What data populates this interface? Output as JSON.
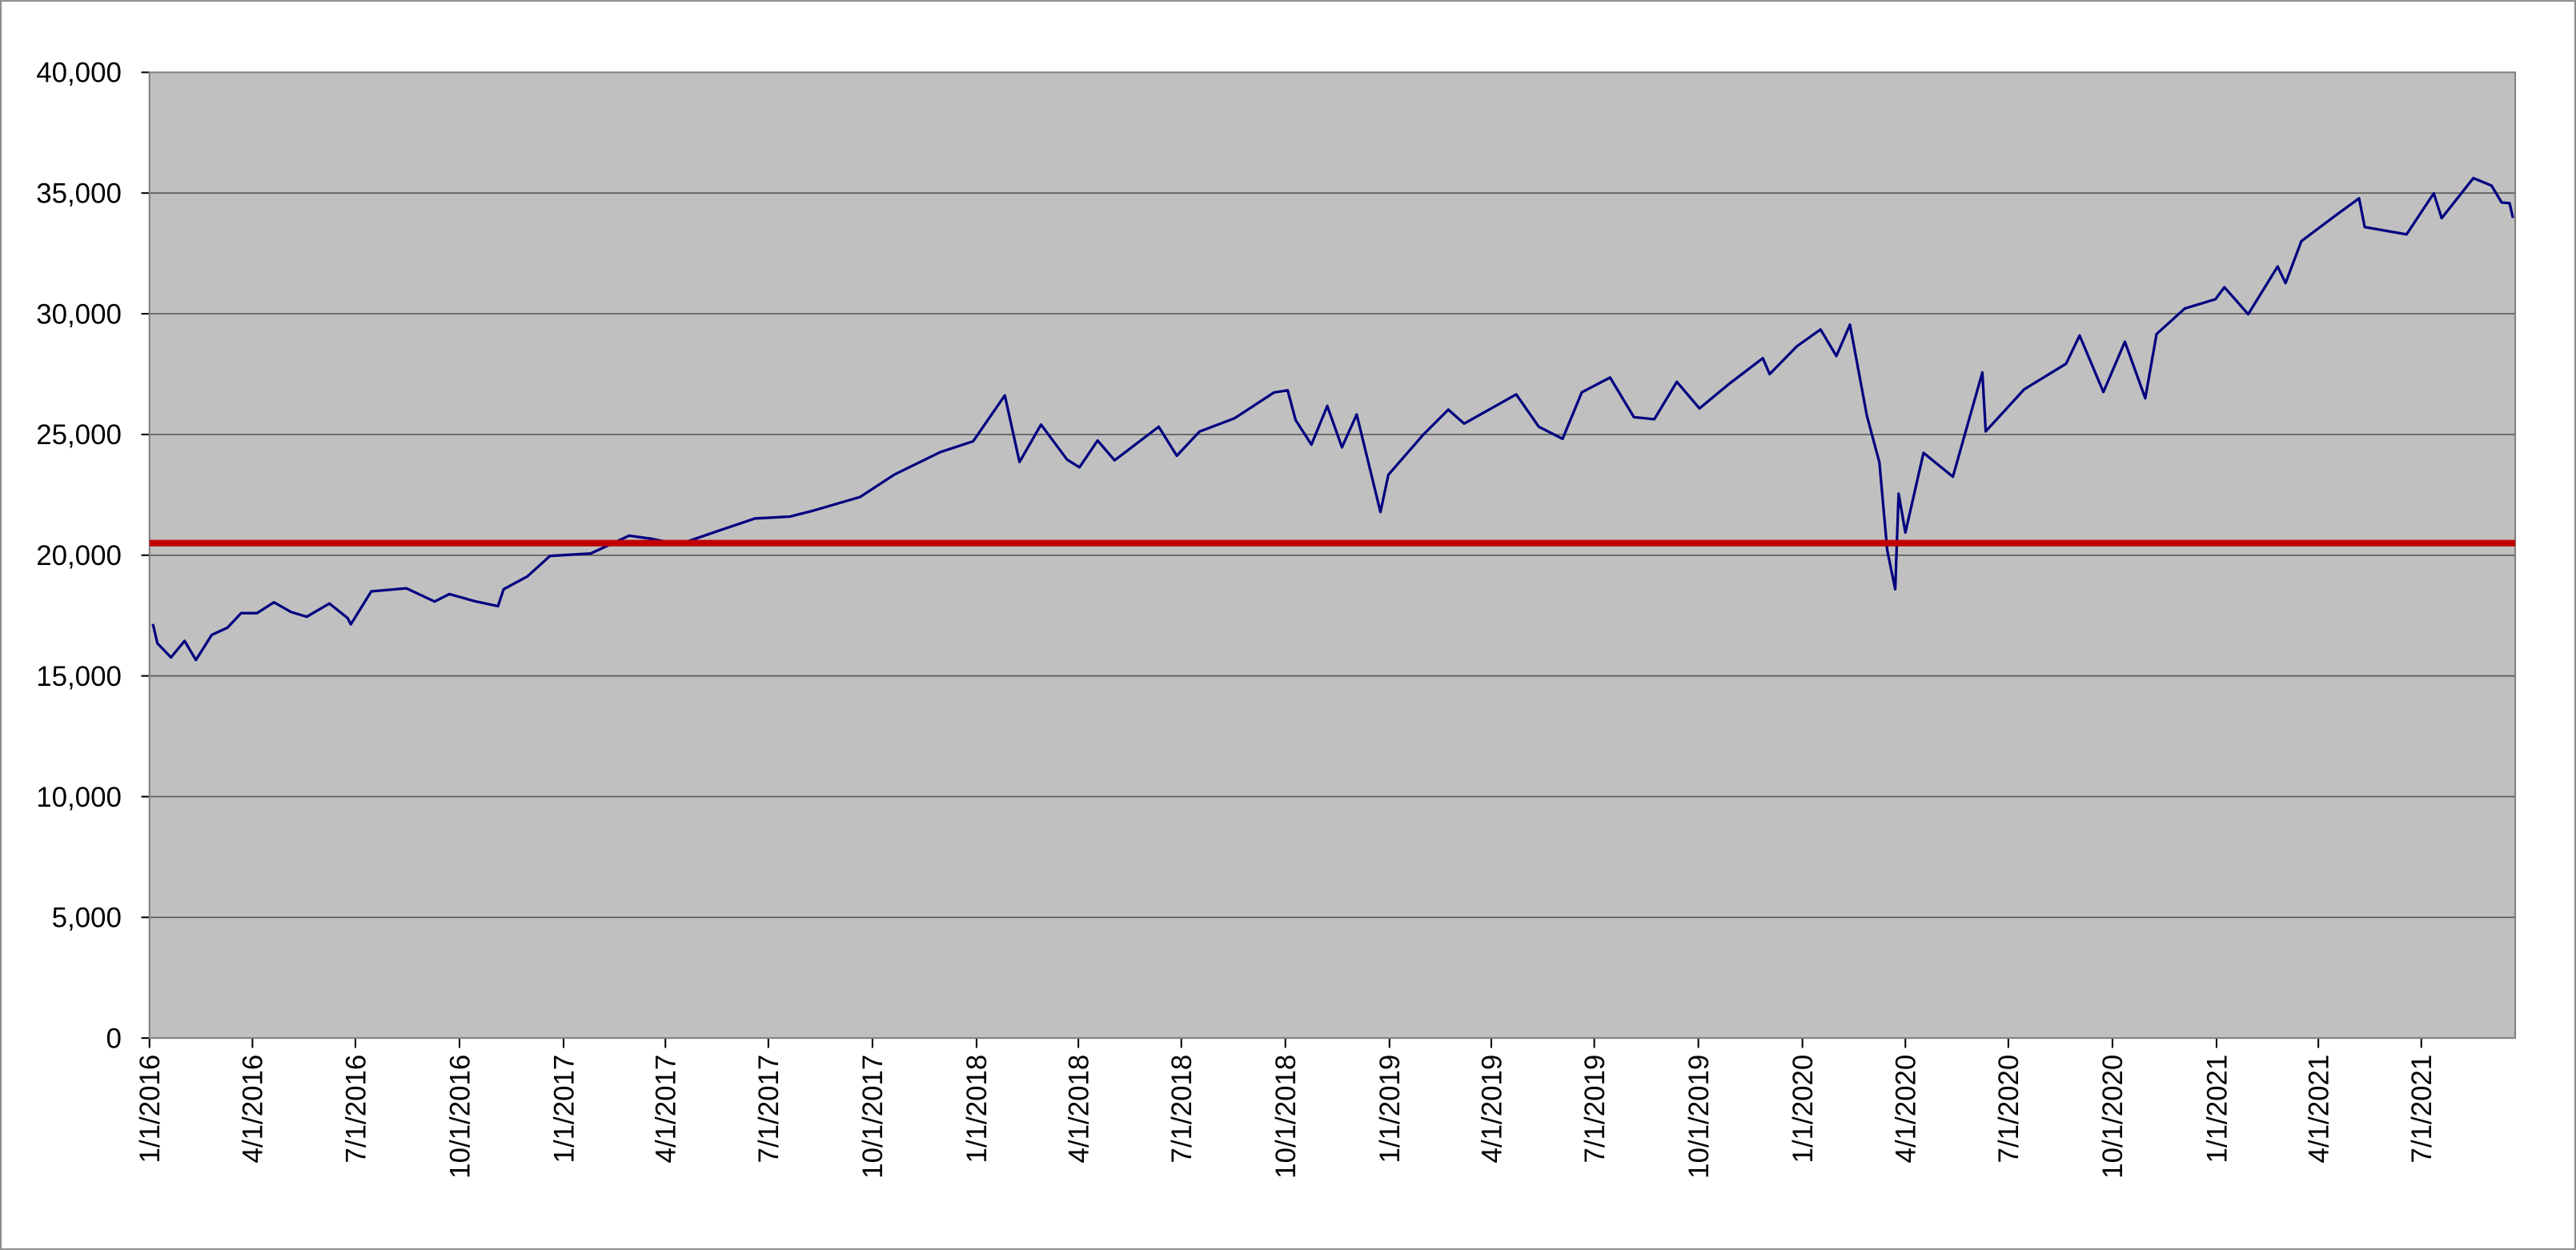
{
  "chart_data": {
    "type": "line",
    "xlim": [
      "1/1/2016",
      "9/22/2021"
    ],
    "xticks": [
      "1/1/2016",
      "4/1/2016",
      "7/1/2016",
      "10/1/2016",
      "1/1/2017",
      "4/1/2017",
      "7/1/2017",
      "10/1/2017",
      "1/1/2018",
      "4/1/2018",
      "7/1/2018",
      "10/1/2018",
      "1/1/2019",
      "4/1/2019",
      "7/1/2019",
      "10/1/2019",
      "1/1/2020",
      "4/1/2020",
      "7/1/2020",
      "10/1/2020",
      "1/1/2021",
      "4/1/2021",
      "7/1/2021"
    ],
    "ylim": [
      0,
      40000
    ],
    "yticks": [
      0,
      {
        "value": 5000,
        "label": "5,000"
      },
      {
        "value": 10000,
        "label": "10,000"
      },
      {
        "value": 15000,
        "label": "15,000"
      },
      {
        "value": 20000,
        "label": "20,000"
      },
      {
        "value": 25000,
        "label": "25,000"
      },
      {
        "value": 30000,
        "label": "30,000"
      },
      {
        "value": 35000,
        "label": "35,000"
      },
      {
        "value": 40000,
        "label": "40,000"
      }
    ],
    "grid": true,
    "plot_background": "#c0c0c0",
    "x": [
      "1/4/2016",
      "1/8/2016",
      "1/20/2016",
      "2/1/2016",
      "2/11/2016",
      "2/25/2016",
      "3/10/2016",
      "3/22/2016",
      "4/5/2016",
      "4/20/2016",
      "5/5/2016",
      "5/19/2016",
      "6/8/2016",
      "6/24/2016",
      "6/27/2016",
      "7/15/2016",
      "8/15/2016",
      "9/9/2016",
      "9/22/2016",
      "10/14/2016",
      "11/4/2016",
      "11/9/2016",
      "11/30/2016",
      "12/20/2016",
      "1/25/2017",
      "2/28/2017",
      "3/21/2017",
      "4/13/2017",
      "5/16/2017",
      "6/19/2017",
      "7/20/2017",
      "8/10/2017",
      "9/20/2017",
      "10/20/2017",
      "11/30/2017",
      "12/29/2017",
      "1/26/2018",
      "2/8/2018",
      "2/27/2018",
      "3/22/2018",
      "4/2/2018",
      "4/18/2018",
      "5/3/2018",
      "6/11/2018",
      "6/27/2018",
      "7/17/2018",
      "8/17/2018",
      "9/21/2018",
      "10/3/2018",
      "10/10/2018",
      "10/24/2018",
      "11/7/2018",
      "11/20/2018",
      "12/3/2018",
      "12/24/2018",
      "12/31/2018",
      "1/31/2019",
      "2/22/2019",
      "3/8/2019",
      "4/23/2019",
      "5/13/2019",
      "6/3/2019",
      "6/20/2019",
      "7/15/2019",
      "8/5/2019",
      "8/23/2019",
      "9/12/2019",
      "10/2/2019",
      "10/28/2019",
      "11/27/2019",
      "12/3/2019",
      "12/27/2019",
      "1/17/2020",
      "1/31/2020",
      "2/12/2020",
      "2/27/2020",
      "3/9/2020",
      "3/16/2020",
      "3/23/2020",
      "3/26/2020",
      "4/1/2020",
      "4/17/2020",
      "5/13/2020",
      "6/8/2020",
      "6/11/2020",
      "7/15/2020",
      "8/21/2020",
      "9/2/2020",
      "9/23/2020",
      "10/12/2020",
      "10/30/2020",
      "11/9/2020",
      "12/4/2020",
      "12/31/2020",
      "1/8/2021",
      "1/29/2021",
      "2/24/2021",
      "3/3/2021",
      "3/17/2021",
      "4/15/2021",
      "5/7/2021",
      "5/12/2021",
      "6/18/2021",
      "7/12/2021",
      "7/19/2021",
      "8/16/2021",
      "9/1/2021",
      "9/10/2021",
      "9/17/2021",
      "9/20/2021"
    ],
    "series": [
      {
        "color": "#000080",
        "values": [
          17150,
          16350,
          15766,
          16450,
          15660,
          16700,
          17000,
          17600,
          17600,
          18050,
          17650,
          17450,
          18000,
          17400,
          17140,
          18500,
          18630,
          18080,
          18390,
          18100,
          17890,
          18590,
          19120,
          19970,
          20070,
          20810,
          20670,
          20450,
          20980,
          21520,
          21600,
          21850,
          22410,
          23330,
          24270,
          24720,
          26620,
          23860,
          25410,
          23960,
          23640,
          24750,
          23930,
          25320,
          24120,
          25120,
          25670,
          26740,
          26830,
          25600,
          24580,
          26180,
          24470,
          25830,
          21790,
          23330,
          24999,
          26030,
          25450,
          26660,
          25320,
          24820,
          26750,
          27360,
          25720,
          25630,
          27180,
          26080,
          27090,
          28160,
          27500,
          28650,
          29350,
          28250,
          29550,
          25770,
          23850,
          20190,
          18590,
          22550,
          20940,
          24240,
          23250,
          27570,
          25130,
          26870,
          27930,
          29100,
          26760,
          28840,
          26500,
          29160,
          30220,
          30600,
          31100,
          29980,
          31960,
          31270,
          33010,
          34030,
          34780,
          33590,
          33290,
          34990,
          33960,
          35620,
          35310,
          34610,
          34580,
          33970
        ]
      }
    ],
    "reference_line": {
      "value": 20500,
      "color": "#c00000"
    }
  }
}
